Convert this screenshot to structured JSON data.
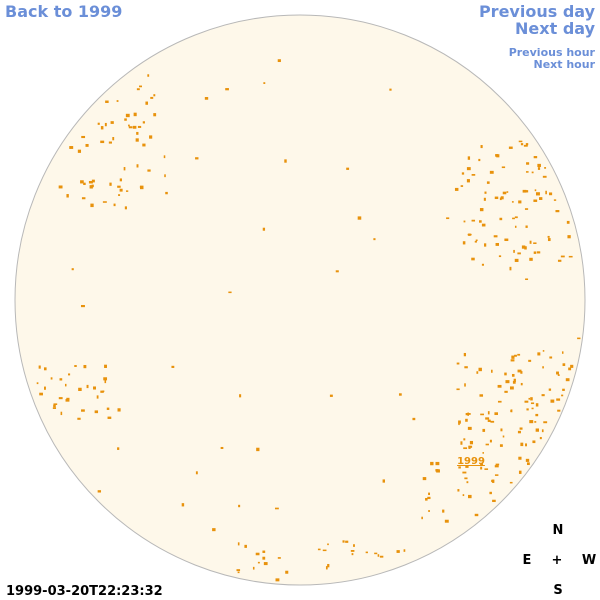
{
  "nav": {
    "back": "Back to 1999",
    "previous_day": "Previous day",
    "next_day": "Next day",
    "previous_hour": "Previous hour",
    "next_hour": "Next hour"
  },
  "marker_label": "1999",
  "compass": {
    "north": "N",
    "east": "E",
    "center": "+",
    "west": "W",
    "south": "S"
  },
  "timestamp": "1999-03-20T22:23:32"
}
